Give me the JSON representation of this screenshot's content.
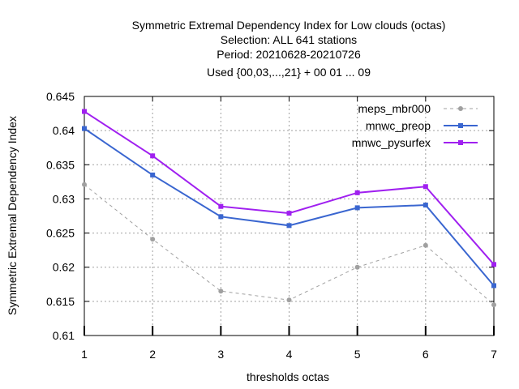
{
  "chart_data": {
    "type": "line",
    "title_lines": [
      "Symmetric Extremal Dependency Index  for Low clouds (octas)",
      "Selection: ALL    641 stations",
      "Period: 20210628-20210726",
      "Used {00,03,...,21} + 00 01 ... 09"
    ],
    "xlabel": "thresholds octas",
    "ylabel": "Symmetric Extremal Dependency Index",
    "x": [
      1,
      2,
      3,
      4,
      5,
      6,
      7
    ],
    "xlim": [
      1,
      7
    ],
    "ylim": [
      0.61,
      0.645
    ],
    "x_ticks": [
      1,
      2,
      3,
      4,
      5,
      6,
      7
    ],
    "y_ticks": [
      0.61,
      0.615,
      0.62,
      0.625,
      0.63,
      0.635,
      0.64,
      0.645
    ],
    "y_tick_labels": [
      "0.61",
      "0.615",
      "0.62",
      "0.625",
      "0.63",
      "0.635",
      "0.64",
      "0.645"
    ],
    "grid": true,
    "legend_position": "top-right",
    "series": [
      {
        "name": "meps_mbr000",
        "color": "#a0a0a0",
        "dashed": true,
        "values": [
          0.6321,
          0.6241,
          0.6165,
          0.6152,
          0.62,
          0.6232,
          0.6145
        ]
      },
      {
        "name": "mnwc_preop",
        "color": "#3a66d0",
        "dashed": false,
        "values": [
          0.6403,
          0.6335,
          0.6274,
          0.6261,
          0.6287,
          0.6291,
          0.6173
        ]
      },
      {
        "name": "mnwc_pysurfex",
        "color": "#a020f0",
        "dashed": false,
        "values": [
          0.6428,
          0.6363,
          0.6289,
          0.6279,
          0.6309,
          0.6318,
          0.6204
        ]
      }
    ]
  }
}
